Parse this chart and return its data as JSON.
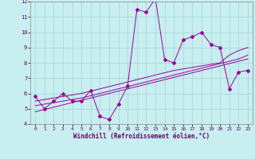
{
  "xlabel": "Windchill (Refroidissement éolien,°C)",
  "x_data": [
    0,
    1,
    2,
    3,
    4,
    5,
    6,
    7,
    8,
    9,
    10,
    11,
    12,
    13,
    14,
    15,
    16,
    17,
    18,
    19,
    20,
    21,
    22,
    23
  ],
  "y_main": [
    5.8,
    5.0,
    5.5,
    6.0,
    5.5,
    5.5,
    6.2,
    4.5,
    4.3,
    5.3,
    6.5,
    11.5,
    11.3,
    12.2,
    8.2,
    8.0,
    9.5,
    9.7,
    10.0,
    9.2,
    9.0,
    6.3,
    7.4,
    7.5
  ],
  "y_line1": [
    5.5,
    5.6,
    5.7,
    5.8,
    5.9,
    6.0,
    6.15,
    6.3,
    6.45,
    6.6,
    6.75,
    6.9,
    7.05,
    7.2,
    7.35,
    7.5,
    7.6,
    7.7,
    7.8,
    7.9,
    8.0,
    8.5,
    8.8,
    9.0
  ],
  "y_line2": [
    5.2,
    5.3,
    5.4,
    5.5,
    5.6,
    5.7,
    5.85,
    6.0,
    6.15,
    6.3,
    6.45,
    6.6,
    6.75,
    6.9,
    7.05,
    7.2,
    7.35,
    7.5,
    7.65,
    7.8,
    7.95,
    8.1,
    8.25,
    8.5
  ],
  "y_line3": [
    4.8,
    4.95,
    5.1,
    5.25,
    5.4,
    5.55,
    5.7,
    5.85,
    6.0,
    6.15,
    6.3,
    6.45,
    6.6,
    6.75,
    6.9,
    7.05,
    7.2,
    7.35,
    7.5,
    7.65,
    7.8,
    7.95,
    8.1,
    8.25
  ],
  "color": "#990099",
  "bg_color": "#c8eef0",
  "grid_color": "#a8d8dc",
  "ylim": [
    4,
    12
  ],
  "xlim": [
    -0.5,
    23.5
  ],
  "yticks": [
    4,
    5,
    6,
    7,
    8,
    9,
    10,
    11,
    12
  ],
  "xticks": [
    0,
    1,
    2,
    3,
    4,
    5,
    6,
    7,
    8,
    9,
    10,
    11,
    12,
    13,
    14,
    15,
    16,
    17,
    18,
    19,
    20,
    21,
    22,
    23
  ]
}
